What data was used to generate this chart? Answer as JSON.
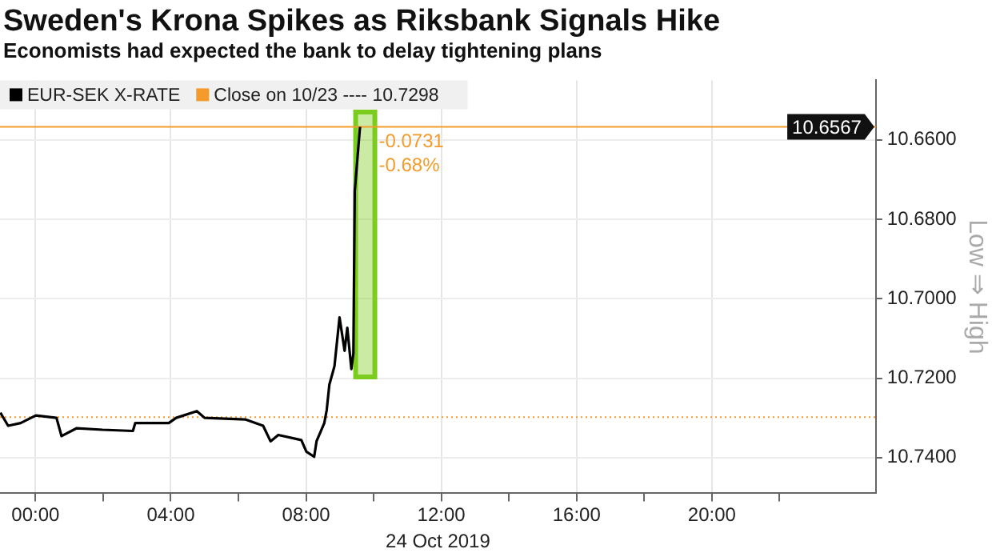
{
  "chart_data": {
    "type": "line",
    "title": "Sweden's Krona Spikes as Riksbank Signals Hike",
    "subtitle": "Economists had expected the bank to delay tightening plans",
    "xlabel": "24 Oct 2019",
    "ylabel": "Low ⇒ High",
    "x": [
      -1.04,
      -0.81,
      -0.44,
      0.01,
      0.62,
      0.77,
      1.22,
      1.98,
      2.88,
      2.95,
      3.94,
      4.16,
      4.77,
      5.0,
      6.2,
      6.73,
      6.95,
      7.18,
      7.86,
      8.01,
      8.24,
      8.31,
      8.54,
      8.61,
      8.69,
      8.84,
      8.99,
      9.14,
      9.22,
      9.34,
      9.4,
      9.44,
      9.59,
      9.6
    ],
    "series": [
      {
        "name": "EUR-SEK X-RATE",
        "color": "#000000",
        "values": [
          10.7287,
          10.732,
          10.7313,
          10.7294,
          10.73,
          10.7346,
          10.7326,
          10.733,
          10.7333,
          10.7313,
          10.7313,
          10.73,
          10.7283,
          10.73,
          10.7304,
          10.732,
          10.7359,
          10.7343,
          10.7356,
          10.7385,
          10.7398,
          10.7359,
          10.7313,
          10.7281,
          10.7216,
          10.717,
          10.7047,
          10.7131,
          10.7073,
          10.7177,
          10.7138,
          10.6729,
          10.6573,
          10.6567
        ]
      },
      {
        "type": "bar",
        "color": "#7ccc1f",
        "x": [
          9.75
        ],
        "base": [
          10.7197
        ],
        "values": [
          -0.0667
        ]
      }
    ],
    "ref_lines": [
      {
        "axis": "y",
        "value": 10.7298,
        "label": "Close on 10/23 ---- 10.7298",
        "color": "#f39c2b",
        "line_style": "dotted"
      },
      {
        "axis": "y",
        "value": 10.6567,
        "label": "10.6567",
        "color": "#f39c2b",
        "line_style": "solid"
      }
    ],
    "annotations": [
      {
        "text": "-0.0731",
        "x": 10.15,
        "y": 10.6605
      },
      {
        "text": "-0.68%",
        "x": 10.15,
        "y": 10.6665
      }
    ],
    "xlim": [
      -1.05,
      24.85
    ],
    "ylim": [
      10.749,
      10.645
    ],
    "xticks": [
      {
        "value": 0,
        "label": "00:00"
      },
      {
        "value": 2,
        "label": null
      },
      {
        "value": 4,
        "label": "04:00"
      },
      {
        "value": 6,
        "label": null
      },
      {
        "value": 8,
        "label": "08:00"
      },
      {
        "value": 10,
        "label": null
      },
      {
        "value": 12,
        "label": "12:00"
      },
      {
        "value": 14,
        "label": null
      },
      {
        "value": 16,
        "label": "16:00"
      },
      {
        "value": 18,
        "label": null
      },
      {
        "value": 20,
        "label": "20:00"
      },
      {
        "value": 22,
        "label": null
      }
    ],
    "yticks": [
      {
        "value": 10.66,
        "label": "10.6600"
      },
      {
        "value": 10.68,
        "label": "10.6800"
      },
      {
        "value": 10.7,
        "label": "10.7000"
      },
      {
        "value": 10.72,
        "label": "10.7200"
      },
      {
        "value": 10.74,
        "label": "10.7400"
      }
    ],
    "grid": true,
    "legend": "top left",
    "line_style": "solid",
    "marker": "none"
  }
}
